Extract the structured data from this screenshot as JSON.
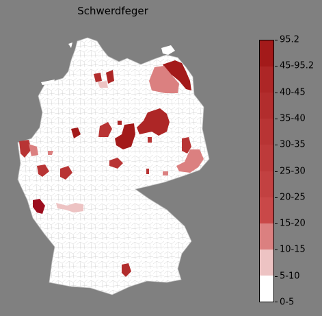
{
  "title": "Schwerdfeger",
  "legend": {
    "bins": [
      "0-5",
      "5-10",
      "10-15",
      "15-20",
      "20-25",
      "25-30",
      "30-35",
      "35-40",
      "40-45",
      "45-95.2",
      "95.2"
    ],
    "colors": [
      "#ffffff",
      "#edc3c3",
      "#db8080",
      "#c94848",
      "#c24141",
      "#bd3a3a",
      "#b83434",
      "#b22d2d",
      "#ad2626",
      "#a31a1a",
      "#9c0d1e"
    ]
  },
  "map": {
    "country": "Germany",
    "region_fill": "#ffffff",
    "border_color": "#c8c8c8",
    "background": "#808080",
    "highlighted_areas": [
      {
        "area": "northeast-coast",
        "bin": "45-95.2"
      },
      {
        "area": "northeast-inland",
        "bin": "10-15"
      },
      {
        "area": "north-central-a",
        "bin": "35-40"
      },
      {
        "area": "north-central-b",
        "bin": "40-45"
      },
      {
        "area": "north-central-c",
        "bin": "5-10"
      },
      {
        "area": "central-east-cluster",
        "bin": "45-95.2"
      },
      {
        "area": "central-cluster",
        "bin": "40-45"
      },
      {
        "area": "central-west",
        "bin": "30-35"
      },
      {
        "area": "west-border",
        "bin": "30-35"
      },
      {
        "area": "west-border-south",
        "bin": "10-15"
      },
      {
        "area": "southwest",
        "bin": "95.2"
      },
      {
        "area": "southwest-band",
        "bin": "5-10"
      },
      {
        "area": "east-saxony",
        "bin": "10-15"
      },
      {
        "area": "east-saxony-b",
        "bin": "30-35"
      },
      {
        "area": "south-bavaria",
        "bin": "35-40"
      }
    ]
  }
}
